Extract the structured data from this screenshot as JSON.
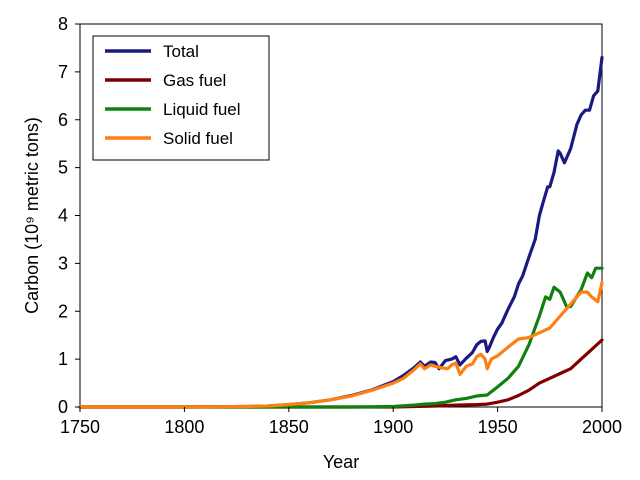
{
  "chart_data": {
    "type": "line",
    "xlabel": "Year",
    "ylabel": "Carbon (10⁹ metric tons)",
    "xlim": [
      1750,
      2000
    ],
    "ylim": [
      0,
      8
    ],
    "xticks": [
      1750,
      1800,
      1850,
      1900,
      1950,
      2000
    ],
    "yticks": [
      0,
      1,
      2,
      3,
      4,
      5,
      6,
      7,
      8
    ],
    "legend_position": "top-left",
    "grid": false,
    "series": [
      {
        "name": "Total",
        "color": "#1a1a80",
        "x": [
          1750,
          1800,
          1830,
          1840,
          1850,
          1860,
          1870,
          1880,
          1890,
          1900,
          1905,
          1910,
          1913,
          1915,
          1918,
          1920,
          1922,
          1925,
          1928,
          1930,
          1932,
          1935,
          1938,
          1940,
          1942,
          1944,
          1945,
          1946,
          1948,
          1950,
          1952,
          1955,
          1958,
          1960,
          1962,
          1965,
          1968,
          1970,
          1972,
          1974,
          1975,
          1977,
          1979,
          1980,
          1982,
          1985,
          1988,
          1990,
          1992,
          1994,
          1996,
          1998,
          2000
        ],
        "y": [
          0,
          0,
          0.01,
          0.02,
          0.05,
          0.09,
          0.15,
          0.24,
          0.36,
          0.53,
          0.66,
          0.82,
          0.94,
          0.85,
          0.94,
          0.93,
          0.8,
          0.97,
          1.0,
          1.05,
          0.88,
          1.02,
          1.14,
          1.3,
          1.37,
          1.38,
          1.16,
          1.24,
          1.45,
          1.63,
          1.75,
          2.04,
          2.3,
          2.57,
          2.74,
          3.13,
          3.5,
          4.0,
          4.3,
          4.6,
          4.6,
          4.9,
          5.35,
          5.3,
          5.1,
          5.4,
          5.9,
          6.1,
          6.2,
          6.2,
          6.5,
          6.6,
          7.3
        ]
      },
      {
        "name": "Gas fuel",
        "color": "#800000",
        "x": [
          1750,
          1900,
          1910,
          1920,
          1930,
          1940,
          1945,
          1950,
          1955,
          1960,
          1965,
          1970,
          1975,
          1980,
          1985,
          1990,
          1995,
          2000
        ],
        "y": [
          0,
          0,
          0.01,
          0.02,
          0.04,
          0.05,
          0.06,
          0.1,
          0.15,
          0.24,
          0.35,
          0.5,
          0.6,
          0.7,
          0.8,
          1.0,
          1.2,
          1.4
        ]
      },
      {
        "name": "Liquid fuel",
        "color": "#108010",
        "x": [
          1750,
          1870,
          1880,
          1890,
          1900,
          1910,
          1915,
          1920,
          1925,
          1930,
          1935,
          1940,
          1945,
          1950,
          1955,
          1960,
          1965,
          1970,
          1973,
          1975,
          1977,
          1980,
          1983,
          1985,
          1990,
          1993,
          1995,
          1997,
          2000
        ],
        "y": [
          0,
          0,
          0.001,
          0.005,
          0.01,
          0.04,
          0.06,
          0.07,
          0.1,
          0.15,
          0.18,
          0.23,
          0.25,
          0.42,
          0.6,
          0.85,
          1.3,
          1.9,
          2.3,
          2.25,
          2.5,
          2.4,
          2.1,
          2.1,
          2.45,
          2.8,
          2.7,
          2.9,
          2.9
        ]
      },
      {
        "name": "Solid fuel",
        "color": "#ff7f10",
        "x": [
          1750,
          1800,
          1830,
          1840,
          1850,
          1860,
          1870,
          1880,
          1890,
          1900,
          1905,
          1910,
          1913,
          1915,
          1918,
          1920,
          1923,
          1926,
          1928,
          1930,
          1932,
          1935,
          1938,
          1940,
          1942,
          1944,
          1945,
          1947,
          1950,
          1955,
          1960,
          1965,
          1970,
          1975,
          1980,
          1985,
          1988,
          1990,
          1993,
          1995,
          1998,
          2000
        ],
        "y": [
          0,
          0,
          0.01,
          0.02,
          0.05,
          0.09,
          0.15,
          0.23,
          0.35,
          0.5,
          0.6,
          0.78,
          0.9,
          0.8,
          0.88,
          0.85,
          0.82,
          0.8,
          0.88,
          0.92,
          0.68,
          0.85,
          0.9,
          1.05,
          1.1,
          1.0,
          0.8,
          1.0,
          1.07,
          1.25,
          1.42,
          1.45,
          1.55,
          1.65,
          1.9,
          2.15,
          2.3,
          2.4,
          2.4,
          2.3,
          2.2,
          2.6
        ]
      }
    ]
  }
}
